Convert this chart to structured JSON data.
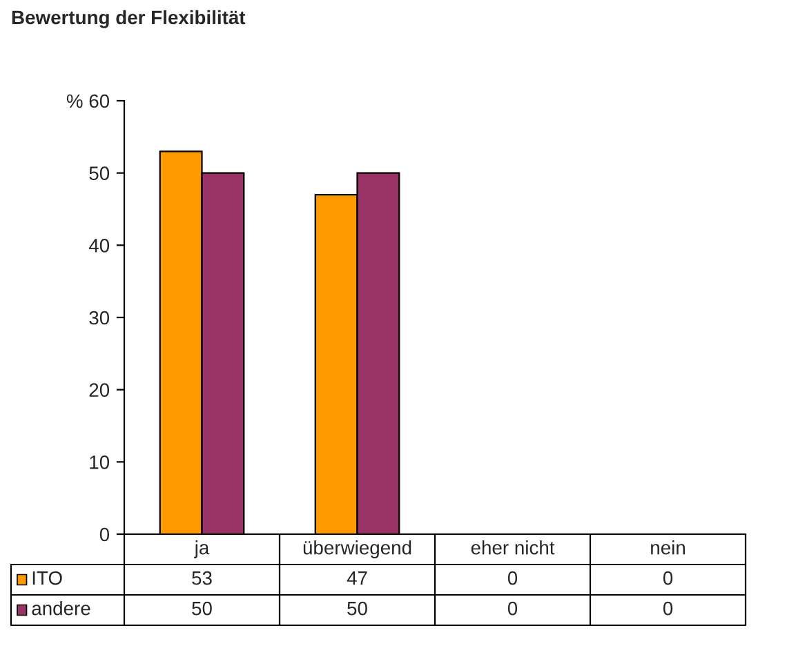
{
  "chart_data": {
    "type": "bar",
    "title": "Bewertung der Flexibilität",
    "categories": [
      "ja",
      "überwiegend",
      "eher nicht",
      "nein"
    ],
    "series": [
      {
        "name": "ITO",
        "color": "#ff9900",
        "values": [
          53,
          47,
          0,
          0
        ]
      },
      {
        "name": "andere",
        "color": "#993366",
        "values": [
          50,
          50,
          0,
          0
        ]
      }
    ],
    "ylim": [
      0,
      60
    ],
    "yticks": [
      0,
      10,
      20,
      30,
      40,
      50,
      {
        "value": 60,
        "label": "% 60"
      }
    ],
    "grid": false,
    "legend": "bottom",
    "data_labels": true
  }
}
